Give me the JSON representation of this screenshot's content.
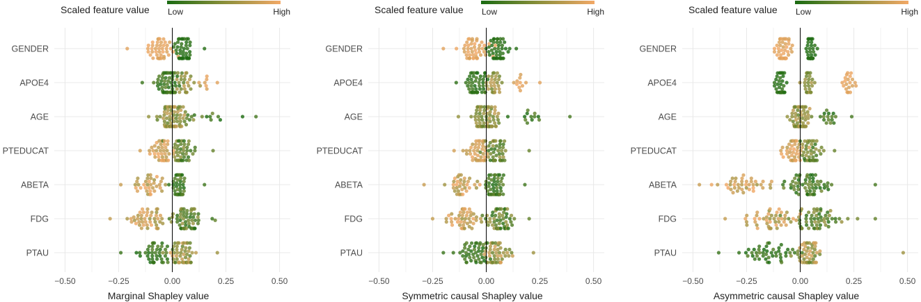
{
  "legend": {
    "title": "Scaled feature value",
    "low_label": "Low",
    "high_label": "High",
    "low_color": "#1a6b12",
    "high_color": "#f2a866"
  },
  "chart_data": [
    {
      "type": "scatter",
      "subtype": "beeswarm",
      "title": "",
      "xlabel": "Marginal Shapley value",
      "ylabel": "",
      "xlim": [
        -0.55,
        0.55
      ],
      "xticks": [
        -0.5,
        -0.25,
        0.0,
        0.25,
        0.5
      ],
      "xtick_labels": [
        "−0.50",
        "−0.25",
        "0.00",
        "0.25",
        "0.50"
      ],
      "categories": [
        "GENDER",
        "APOE4",
        "AGE",
        "PTEDUCAT",
        "ABETA",
        "FDG",
        "PTAU"
      ],
      "series": [
        {
          "name": "GENDER",
          "min": -0.21,
          "max": 0.15,
          "clusters": [
            {
              "center": -0.05,
              "spread": 0.07,
              "count": 45,
              "color_low": 0.85,
              "color_high": 1.0
            },
            {
              "center": 0.05,
              "spread": 0.04,
              "count": 45,
              "color_low": 0.0,
              "color_high": 0.12
            }
          ]
        },
        {
          "name": "APOE4",
          "min": -0.14,
          "max": 0.21,
          "clusters": [
            {
              "center": -0.02,
              "spread": 0.05,
              "count": 60,
              "color_low": 0.0,
              "color_high": 0.3
            },
            {
              "center": 0.06,
              "spread": 0.05,
              "count": 25,
              "color_low": 0.4,
              "color_high": 0.8
            },
            {
              "center": 0.15,
              "spread": 0.04,
              "count": 6,
              "color_low": 0.85,
              "color_high": 1.0
            }
          ]
        },
        {
          "name": "AGE",
          "min": -0.11,
          "max": 0.39,
          "clusters": [
            {
              "center": 0.0,
              "spread": 0.06,
              "count": 80,
              "color_low": 0.3,
              "color_high": 0.8
            },
            {
              "center": 0.16,
              "spread": 0.08,
              "count": 12,
              "color_low": 0.0,
              "color_high": 0.4
            }
          ]
        },
        {
          "name": "PTEDUCAT",
          "min": -0.15,
          "max": 0.19,
          "clusters": [
            {
              "center": -0.04,
              "spread": 0.05,
              "count": 40,
              "color_low": 0.7,
              "color_high": 1.0
            },
            {
              "center": 0.05,
              "spread": 0.05,
              "count": 45,
              "color_low": 0.1,
              "color_high": 0.6
            }
          ]
        },
        {
          "name": "ABETA",
          "min": -0.24,
          "max": 0.15,
          "clusters": [
            {
              "center": -0.1,
              "spread": 0.06,
              "count": 35,
              "color_low": 0.6,
              "color_high": 1.0
            },
            {
              "center": 0.03,
              "spread": 0.025,
              "count": 50,
              "color_low": 0.0,
              "color_high": 0.35
            }
          ]
        },
        {
          "name": "FDG",
          "min": -0.29,
          "max": 0.2,
          "clusters": [
            {
              "center": -0.12,
              "spread": 0.08,
              "count": 45,
              "color_low": 0.55,
              "color_high": 1.0
            },
            {
              "center": 0.06,
              "spread": 0.07,
              "count": 60,
              "color_low": 0.05,
              "color_high": 0.6
            }
          ]
        },
        {
          "name": "PTAU",
          "min": -0.24,
          "max": 0.21,
          "clusters": [
            {
              "center": -0.08,
              "spread": 0.07,
              "count": 45,
              "color_low": 0.0,
              "color_high": 0.3
            },
            {
              "center": 0.05,
              "spread": 0.06,
              "count": 50,
              "color_low": 0.3,
              "color_high": 0.9
            }
          ]
        }
      ]
    },
    {
      "type": "scatter",
      "subtype": "beeswarm",
      "title": "",
      "xlabel": "Symmetric causal Shapley value",
      "ylabel": "",
      "xlim": [
        -0.55,
        0.55
      ],
      "xticks": [
        -0.5,
        -0.25,
        0.0,
        0.25,
        0.5
      ],
      "xtick_labels": [
        "−0.50",
        "−0.25",
        "0.00",
        "0.25",
        "0.50"
      ],
      "categories": [
        "GENDER",
        "APOE4",
        "AGE",
        "PTEDUCAT",
        "ABETA",
        "FDG",
        "PTAU"
      ],
      "series": [
        {
          "name": "GENDER",
          "min": -0.2,
          "max": 0.14,
          "clusters": [
            {
              "center": -0.06,
              "spread": 0.07,
              "count": 45,
              "color_low": 0.85,
              "color_high": 1.0
            },
            {
              "center": 0.05,
              "spread": 0.04,
              "count": 45,
              "color_low": 0.0,
              "color_high": 0.12
            }
          ]
        },
        {
          "name": "APOE4",
          "min": -0.14,
          "max": 0.25,
          "clusters": [
            {
              "center": -0.06,
              "spread": 0.05,
              "count": 50,
              "color_low": 0.0,
              "color_high": 0.2
            },
            {
              "center": 0.04,
              "spread": 0.04,
              "count": 30,
              "color_low": 0.35,
              "color_high": 0.75
            },
            {
              "center": 0.15,
              "spread": 0.04,
              "count": 10,
              "color_low": 0.85,
              "color_high": 1.0
            }
          ]
        },
        {
          "name": "AGE",
          "min": -0.13,
          "max": 0.39,
          "clusters": [
            {
              "center": 0.0,
              "spread": 0.06,
              "count": 80,
              "color_low": 0.3,
              "color_high": 0.8
            },
            {
              "center": 0.18,
              "spread": 0.09,
              "count": 12,
              "color_low": 0.0,
              "color_high": 0.4
            }
          ]
        },
        {
          "name": "PTEDUCAT",
          "min": -0.15,
          "max": 0.2,
          "clusters": [
            {
              "center": -0.04,
              "spread": 0.05,
              "count": 40,
              "color_low": 0.7,
              "color_high": 1.0
            },
            {
              "center": 0.05,
              "spread": 0.05,
              "count": 45,
              "color_low": 0.1,
              "color_high": 0.6
            }
          ]
        },
        {
          "name": "ABETA",
          "min": -0.29,
          "max": 0.18,
          "clusters": [
            {
              "center": -0.12,
              "spread": 0.07,
              "count": 35,
              "color_low": 0.6,
              "color_high": 1.0
            },
            {
              "center": 0.04,
              "spread": 0.04,
              "count": 50,
              "color_low": 0.0,
              "color_high": 0.35
            }
          ]
        },
        {
          "name": "FDG",
          "min": -0.25,
          "max": 0.2,
          "clusters": [
            {
              "center": -0.1,
              "spread": 0.07,
              "count": 45,
              "color_low": 0.55,
              "color_high": 1.0
            },
            {
              "center": 0.06,
              "spread": 0.06,
              "count": 60,
              "color_low": 0.05,
              "color_high": 0.6
            }
          ]
        },
        {
          "name": "PTAU",
          "min": -0.2,
          "max": 0.22,
          "clusters": [
            {
              "center": -0.06,
              "spread": 0.07,
              "count": 45,
              "color_low": 0.0,
              "color_high": 0.3
            },
            {
              "center": 0.05,
              "spread": 0.06,
              "count": 50,
              "color_low": 0.3,
              "color_high": 0.9
            }
          ]
        }
      ]
    },
    {
      "type": "scatter",
      "subtype": "beeswarm",
      "title": "",
      "xlabel": "Asymmetric causal Shapley value",
      "ylabel": "",
      "xlim": [
        -0.55,
        0.55
      ],
      "xticks": [
        -0.5,
        -0.25,
        0.0,
        0.25,
        0.5
      ],
      "xtick_labels": [
        "−0.50",
        "−0.25",
        "0.00",
        "0.25",
        "0.50"
      ],
      "categories": [
        "GENDER",
        "APOE4",
        "AGE",
        "PTEDUCAT",
        "ABETA",
        "FDG",
        "PTAU"
      ],
      "series": [
        {
          "name": "GENDER",
          "min": -0.12,
          "max": 0.08,
          "clusters": [
            {
              "center": -0.08,
              "spread": 0.03,
              "count": 45,
              "color_low": 0.85,
              "color_high": 1.0
            },
            {
              "center": 0.05,
              "spread": 0.02,
              "count": 45,
              "color_low": 0.0,
              "color_high": 0.1
            }
          ]
        },
        {
          "name": "APOE4",
          "min": -0.12,
          "max": 0.26,
          "clusters": [
            {
              "center": -0.09,
              "spread": 0.02,
              "count": 40,
              "color_low": 0.0,
              "color_high": 0.15
            },
            {
              "center": 0.04,
              "spread": 0.02,
              "count": 25,
              "color_low": 0.35,
              "color_high": 0.7
            },
            {
              "center": 0.22,
              "spread": 0.025,
              "count": 20,
              "color_low": 0.85,
              "color_high": 1.0
            }
          ]
        },
        {
          "name": "AGE",
          "min": -0.06,
          "max": 0.24,
          "clusters": [
            {
              "center": 0.0,
              "spread": 0.04,
              "count": 70,
              "color_low": 0.3,
              "color_high": 0.8
            },
            {
              "center": 0.12,
              "spread": 0.06,
              "count": 15,
              "color_low": 0.0,
              "color_high": 0.4
            }
          ]
        },
        {
          "name": "PTEDUCAT",
          "min": -0.09,
          "max": 0.16,
          "clusters": [
            {
              "center": -0.03,
              "spread": 0.04,
              "count": 40,
              "color_low": 0.7,
              "color_high": 1.0
            },
            {
              "center": 0.05,
              "spread": 0.04,
              "count": 45,
              "color_low": 0.1,
              "color_high": 0.6
            }
          ]
        },
        {
          "name": "ABETA",
          "min": -0.47,
          "max": 0.35,
          "clusters": [
            {
              "center": -0.25,
              "spread": 0.12,
              "count": 40,
              "color_low": 0.6,
              "color_high": 1.0
            },
            {
              "center": 0.05,
              "spread": 0.09,
              "count": 60,
              "color_low": 0.0,
              "color_high": 0.4
            }
          ]
        },
        {
          "name": "FDG",
          "min": -0.35,
          "max": 0.35,
          "clusters": [
            {
              "center": -0.12,
              "spread": 0.11,
              "count": 45,
              "color_low": 0.55,
              "color_high": 1.0
            },
            {
              "center": 0.08,
              "spread": 0.1,
              "count": 60,
              "color_low": 0.05,
              "color_high": 0.6
            }
          ]
        },
        {
          "name": "PTAU",
          "min": -0.38,
          "max": 0.48,
          "clusters": [
            {
              "center": -0.15,
              "spread": 0.11,
              "count": 45,
              "color_low": 0.0,
              "color_high": 0.3
            },
            {
              "center": 0.04,
              "spread": 0.05,
              "count": 50,
              "color_low": 0.3,
              "color_high": 0.9
            }
          ]
        }
      ]
    }
  ]
}
